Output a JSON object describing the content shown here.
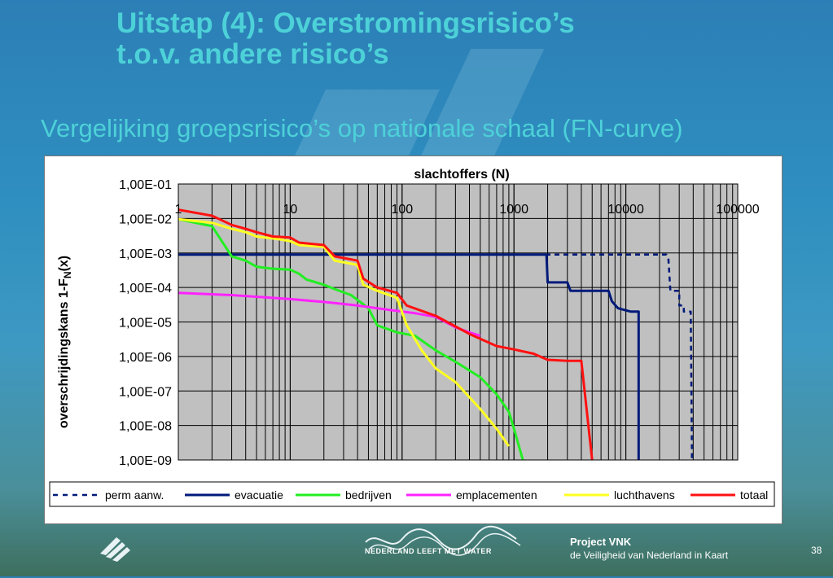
{
  "slide": {
    "title_line1": "Uitstap (4): Overstromingsrisico’s",
    "title_line2": "t.o.v. andere risico’s",
    "subtitle": "Vergelijking groepsrisico’s op nationale schaal (FN-curve)",
    "page_number": "38"
  },
  "footer": {
    "nlmw_text": "Nederland leeft met water",
    "vnk_title": "Project VNK",
    "vnk_subtitle": "de Veiligheid van Nederland in Kaart"
  },
  "colors": {
    "title": "#4dd1d8",
    "plot_bg": "#c0c0c0",
    "perm_aanw": "#001a7a",
    "evacuatie": "#001a7a",
    "bedrijven": "#22ee22",
    "emplacementen": "#ff22ff",
    "luchthavens": "#ffff22",
    "totaal": "#ff1111"
  },
  "chart_data": {
    "type": "line",
    "x_scale": "log",
    "y_scale": "log",
    "xlabel": "slachtoffers (N)",
    "ylabel_main": "overschrijdingskans 1-F",
    "ylabel_sub": "N",
    "ylabel_end": "(x)",
    "xlim": [
      1,
      100000
    ],
    "ylim": [
      1e-09,
      0.1
    ],
    "x_tick_labels": [
      "1",
      "10",
      "100",
      "1000",
      "10000",
      "100000"
    ],
    "y_tick_labels": [
      "1,00E-01",
      "1,00E-02",
      "1,00E-03",
      "1,00E-04",
      "1,00E-05",
      "1,00E-06",
      "1,00E-07",
      "1,00E-08",
      "1,00E-09"
    ],
    "grid": true,
    "legend_position": "bottom",
    "series": [
      {
        "name": "perm aanw.",
        "style": "dashed",
        "color": "#001a7a",
        "points": [
          [
            1,
            0.0009
          ],
          [
            1900,
            0.0009
          ],
          [
            1900,
            0.0009
          ],
          [
            23000,
            0.0009
          ],
          [
            24000,
            0.0007
          ],
          [
            25000,
            8e-05
          ],
          [
            30000,
            8e-05
          ],
          [
            30000,
            3e-05
          ],
          [
            33000,
            3e-05
          ],
          [
            33000,
            2e-05
          ],
          [
            38000,
            2e-05
          ],
          [
            39000,
            1e-09
          ]
        ]
      },
      {
        "name": "evacuatie",
        "style": "solid",
        "color": "#001a7a",
        "points": [
          [
            1,
            0.0009
          ],
          [
            1950,
            0.0009
          ],
          [
            2000,
            0.00014
          ],
          [
            3000,
            0.00014
          ],
          [
            3200,
            8e-05
          ],
          [
            7000,
            8e-05
          ],
          [
            7500,
            4e-05
          ],
          [
            8500,
            2.5e-05
          ],
          [
            11000,
            2e-05
          ],
          [
            13000,
            2e-05
          ],
          [
            13000,
            1e-09
          ]
        ]
      },
      {
        "name": "bedrijven",
        "style": "solid",
        "color": "#22ee22",
        "points": [
          [
            1,
            0.0095
          ],
          [
            2,
            0.006
          ],
          [
            3,
            0.0008
          ],
          [
            4,
            0.0006
          ],
          [
            5,
            0.0004
          ],
          [
            7,
            0.00035
          ],
          [
            10,
            0.00033
          ],
          [
            12,
            0.00025
          ],
          [
            14,
            0.00017
          ],
          [
            20,
            0.00012
          ],
          [
            25,
            9e-05
          ],
          [
            35,
            6e-05
          ],
          [
            50,
            2.5e-05
          ],
          [
            60,
            8e-06
          ],
          [
            90,
            5e-06
          ],
          [
            130,
            4e-06
          ],
          [
            200,
            1.5e-06
          ],
          [
            300,
            7e-07
          ],
          [
            500,
            2.5e-07
          ],
          [
            700,
            8e-08
          ],
          [
            900,
            2.5e-08
          ],
          [
            1000,
            8e-09
          ],
          [
            1200,
            1e-09
          ]
        ]
      },
      {
        "name": "emplacementen",
        "style": "solid",
        "color": "#ff22ff",
        "points": [
          [
            1,
            7e-05
          ],
          [
            3,
            6e-05
          ],
          [
            6,
            5.2e-05
          ],
          [
            10,
            4.6e-05
          ],
          [
            20,
            3.8e-05
          ],
          [
            40,
            3e-05
          ],
          [
            80,
            2.2e-05
          ],
          [
            130,
            1.8e-05
          ],
          [
            200,
            1.4e-05
          ],
          [
            300,
            7e-06
          ],
          [
            400,
            5e-06
          ],
          [
            500,
            4e-06
          ]
        ]
      },
      {
        "name": "luchthavens",
        "style": "solid",
        "color": "#ffff22",
        "points": [
          [
            1,
            0.0095
          ],
          [
            2,
            0.0075
          ],
          [
            3,
            0.005
          ],
          [
            4,
            0.004
          ],
          [
            5,
            0.003
          ],
          [
            8,
            0.0025
          ],
          [
            10,
            0.0022
          ],
          [
            12,
            0.0017
          ],
          [
            20,
            0.0015
          ],
          [
            25,
            0.0006
          ],
          [
            40,
            0.00045
          ],
          [
            45,
            0.00012
          ],
          [
            60,
            8e-05
          ],
          [
            90,
            5e-05
          ],
          [
            110,
            8e-06
          ],
          [
            150,
            1.5e-06
          ],
          [
            200,
            4.5e-07
          ],
          [
            300,
            1.8e-07
          ],
          [
            500,
            3e-08
          ],
          [
            700,
            8e-09
          ],
          [
            900,
            2.5e-09
          ]
        ]
      },
      {
        "name": "totaal",
        "style": "solid",
        "color": "#ff1111",
        "points": [
          [
            1,
            0.018
          ],
          [
            2,
            0.012
          ],
          [
            3,
            0.0065
          ],
          [
            4,
            0.005
          ],
          [
            5,
            0.004
          ],
          [
            7,
            0.003
          ],
          [
            10,
            0.0028
          ],
          [
            12,
            0.002
          ],
          [
            20,
            0.0017
          ],
          [
            25,
            0.0008
          ],
          [
            40,
            0.0006
          ],
          [
            45,
            0.00018
          ],
          [
            60,
            0.0001
          ],
          [
            90,
            7e-05
          ],
          [
            110,
            3e-05
          ],
          [
            200,
            1.5e-05
          ],
          [
            400,
            4.5e-06
          ],
          [
            700,
            2e-06
          ],
          [
            1000,
            1.6e-06
          ],
          [
            1500,
            1.2e-06
          ],
          [
            2000,
            8e-07
          ],
          [
            3000,
            7.5e-07
          ],
          [
            4000,
            7.5e-07
          ],
          [
            5000,
            1e-09
          ]
        ]
      }
    ]
  }
}
